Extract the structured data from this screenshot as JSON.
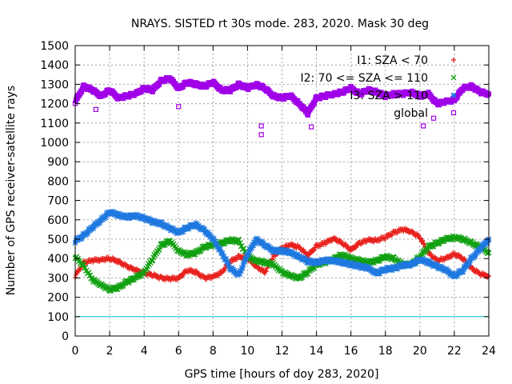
{
  "chart_data": {
    "type": "scatter",
    "title": "NRAYS. SISTED rt 30s mode. 283, 2020. Mask 30 deg",
    "xlabel": "GPS time [hours of doy 283, 2020]",
    "ylabel": "Number of GPS receiver-satellite rays",
    "xlim": [
      0,
      24
    ],
    "ylim": [
      0,
      1500
    ],
    "xticks": [
      0,
      2,
      4,
      6,
      8,
      10,
      12,
      14,
      16,
      18,
      20,
      22,
      24
    ],
    "yticks": [
      0,
      100,
      200,
      300,
      400,
      500,
      600,
      700,
      800,
      900,
      1000,
      1100,
      1200,
      1300,
      1400,
      1500
    ],
    "grid": true,
    "legend_position": "top-right",
    "threshold_line": {
      "y": 100,
      "color": "#00c8d8"
    },
    "series": [
      {
        "name": "I1: SZA < 70",
        "marker": "+",
        "color": "#e8201c",
        "x": [
          0,
          0.5,
          1,
          1.5,
          2,
          2.5,
          3,
          3.5,
          4,
          4.5,
          5,
          5.5,
          6,
          6.5,
          7,
          7.5,
          8,
          8.5,
          9,
          9.5,
          10,
          10.5,
          11,
          11.5,
          12,
          12.5,
          13,
          13.5,
          14,
          14.5,
          15,
          15.5,
          16,
          16.5,
          17,
          17.5,
          18,
          18.5,
          19,
          19.5,
          20,
          20.5,
          21,
          21.5,
          22,
          22.5,
          23,
          23.5,
          24
        ],
        "y": [
          310,
          380,
          390,
          395,
          400,
          385,
          360,
          340,
          325,
          315,
          300,
          295,
          300,
          340,
          330,
          300,
          305,
          330,
          385,
          410,
          400,
          360,
          330,
          410,
          455,
          470,
          460,
          415,
          465,
          480,
          505,
          480,
          445,
          480,
          495,
          495,
          510,
          535,
          550,
          540,
          510,
          430,
          390,
          400,
          425,
          400,
          350,
          320,
          310
        ]
      },
      {
        "name": "I2: 70 <= SZA <= 110",
        "marker": "x",
        "color": "#10a010",
        "x": [
          0,
          0.5,
          1,
          1.5,
          2,
          2.5,
          3,
          3.5,
          4,
          4.5,
          5,
          5.5,
          6,
          6.5,
          7,
          7.5,
          8,
          8.5,
          9,
          9.5,
          10,
          10.5,
          11,
          11.5,
          12,
          12.5,
          13,
          13.5,
          14,
          14.5,
          15,
          15.5,
          16,
          16.5,
          17,
          17.5,
          18,
          18.5,
          19,
          19.5,
          20,
          20.5,
          21,
          21.5,
          22,
          22.5,
          23,
          23.5,
          24
        ],
        "y": [
          410,
          360,
          290,
          265,
          240,
          250,
          280,
          300,
          330,
          400,
          470,
          490,
          440,
          420,
          430,
          460,
          470,
          480,
          495,
          490,
          410,
          390,
          380,
          370,
          330,
          310,
          300,
          330,
          370,
          380,
          400,
          420,
          400,
          390,
          380,
          390,
          410,
          400,
          370,
          370,
          410,
          460,
          480,
          500,
          510,
          500,
          480,
          460,
          430
        ]
      },
      {
        "name": "I3: SZA > 110",
        "marker": "*",
        "color": "#1e78e0",
        "x": [
          0,
          0.5,
          1,
          1.5,
          2,
          2.5,
          3,
          3.5,
          4,
          4.5,
          5,
          5.5,
          6,
          6.5,
          7,
          7.5,
          8,
          8.5,
          9,
          9.5,
          10,
          10.5,
          11,
          11.5,
          12,
          12.5,
          13,
          13.5,
          14,
          14.5,
          15,
          15.5,
          16,
          16.5,
          17,
          17.5,
          18,
          18.5,
          19,
          19.5,
          20,
          20.5,
          21,
          21.5,
          22,
          22.5,
          23,
          23.5,
          24
        ],
        "y": [
          490,
          520,
          560,
          600,
          640,
          625,
          615,
          620,
          610,
          590,
          580,
          555,
          535,
          560,
          575,
          545,
          500,
          430,
          350,
          315,
          420,
          500,
          470,
          440,
          440,
          430,
          410,
          385,
          380,
          390,
          390,
          380,
          370,
          360,
          350,
          325,
          345,
          350,
          365,
          370,
          395,
          380,
          360,
          340,
          310,
          340,
          400,
          450,
          500
        ]
      },
      {
        "name": "global",
        "marker": "square",
        "color": "#a000e8",
        "x": [
          0,
          0.5,
          1,
          1.5,
          2,
          2.5,
          3,
          3.5,
          4,
          4.5,
          5,
          5.5,
          6,
          6.5,
          7,
          7.5,
          8,
          8.5,
          9,
          9.5,
          10,
          10.5,
          11,
          11.5,
          12,
          12.5,
          13,
          13.5,
          14,
          14.5,
          15,
          15.5,
          16,
          16.5,
          17,
          17.5,
          18,
          18.5,
          19,
          19.5,
          20,
          20.5,
          21,
          21.5,
          22,
          22.5,
          23,
          23.5,
          24
        ],
        "y": [
          1210,
          1290,
          1270,
          1240,
          1270,
          1230,
          1240,
          1250,
          1280,
          1270,
          1320,
          1330,
          1280,
          1310,
          1300,
          1290,
          1310,
          1270,
          1270,
          1300,
          1280,
          1300,
          1280,
          1240,
          1230,
          1240,
          1200,
          1150,
          1230,
          1240,
          1250,
          1260,
          1280,
          1250,
          1270,
          1260,
          1240,
          1250,
          1250,
          1260,
          1240,
          1250,
          1200,
          1210,
          1220,
          1280,
          1290,
          1260,
          1250
        ],
        "outliers": [
          [
            6,
            1185
          ],
          [
            10.8,
            1085
          ],
          [
            10.8,
            1040
          ],
          [
            13.7,
            1080
          ],
          [
            20.2,
            1085
          ],
          [
            20.8,
            1125
          ],
          [
            1.2,
            1170
          ]
        ]
      }
    ]
  }
}
